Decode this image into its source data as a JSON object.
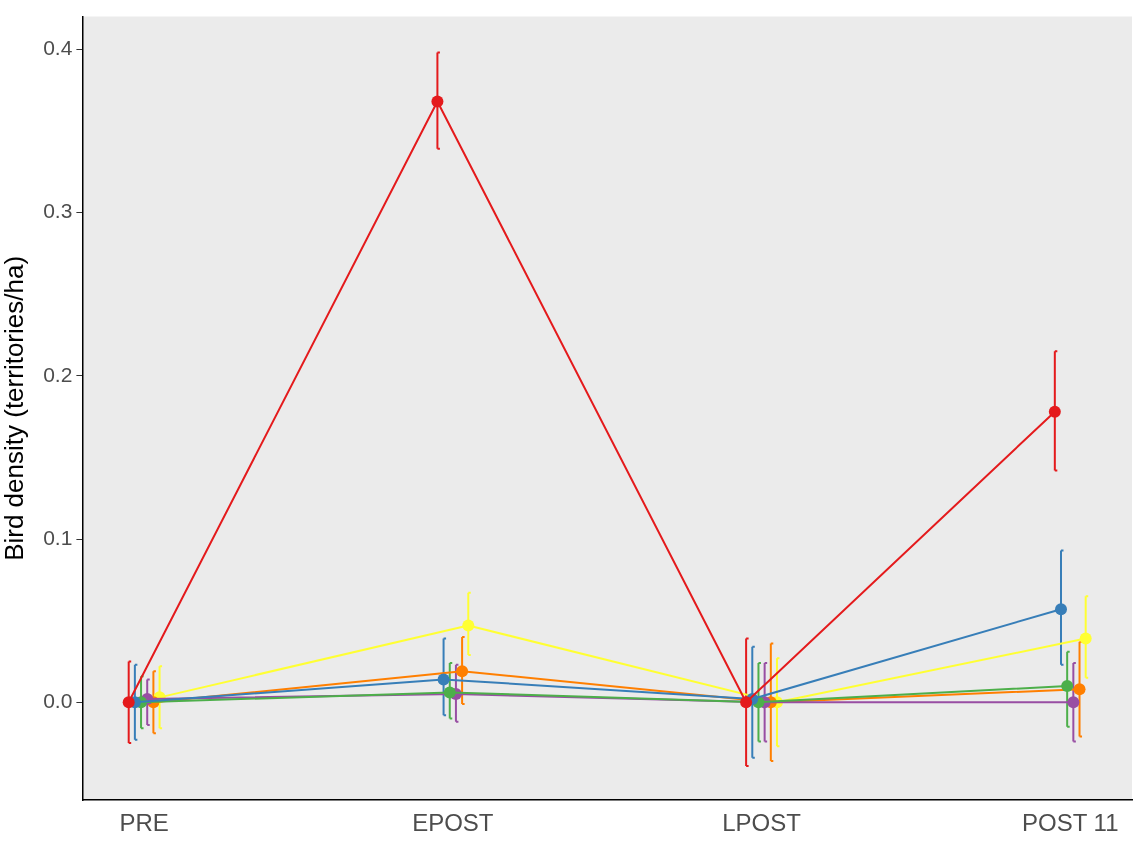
{
  "chart_data": {
    "type": "line",
    "ylabel": "Bird density (territories/ha)",
    "categories": [
      "PRE",
      "EPOST",
      "LPOST",
      "POST 11"
    ],
    "ylim": [
      -0.06,
      0.42
    ],
    "yticks": [
      {
        "value": 0,
        "label": "0.0"
      },
      {
        "value": 0.1,
        "label": "0.1"
      },
      {
        "value": 0.2,
        "label": "0.2"
      },
      {
        "value": 0.3,
        "label": "0.3"
      },
      {
        "value": 0.4,
        "label": "0.4"
      }
    ],
    "grid": false,
    "legend": false,
    "marker": "circle",
    "line_style": "solid",
    "series": [
      {
        "color": "#e41a1c",
        "values": [
          0,
          0.368,
          0,
          0.178
        ],
        "errors": [
          [
            -0.025,
            0.025
          ],
          [
            0.339,
            0.398
          ],
          [
            -0.039,
            0.039
          ],
          [
            0.142,
            0.215
          ]
        ]
      },
      {
        "color": "#377eb8",
        "values": [
          0,
          0.014,
          0.002,
          0.057
        ],
        "errors": [
          [
            -0.023,
            0.023
          ],
          [
            -0.008,
            0.039
          ],
          [
            -0.034,
            0.034
          ],
          [
            0.023,
            0.093
          ]
        ]
      },
      {
        "color": "#4daf4a",
        "values": [
          0,
          0.006,
          0,
          0.01
        ],
        "errors": [
          [
            -0.016,
            0.016
          ],
          [
            -0.01,
            0.024
          ],
          [
            -0.024,
            0.024
          ],
          [
            -0.015,
            0.031
          ]
        ]
      },
      {
        "color": "#984ea3",
        "values": [
          0.002,
          0.005,
          0,
          0
        ],
        "errors": [
          [
            -0.014,
            0.014
          ],
          [
            -0.012,
            0.023
          ],
          [
            -0.024,
            0.024
          ],
          [
            -0.024,
            0.024
          ]
        ]
      },
      {
        "color": "#ff7f00",
        "values": [
          0,
          0.019,
          0,
          0.008
        ],
        "errors": [
          [
            -0.019,
            0.019
          ],
          [
            -0.001,
            0.04
          ],
          [
            -0.036,
            0.036
          ],
          [
            -0.021,
            0.037
          ]
        ]
      },
      {
        "color": "#ffff33",
        "values": [
          0.003,
          0.047,
          0,
          0.039
        ],
        "errors": [
          [
            -0.016,
            0.022
          ],
          [
            0.029,
            0.067
          ],
          [
            -0.027,
            0.027
          ],
          [
            0.015,
            0.065
          ]
        ]
      }
    ]
  }
}
